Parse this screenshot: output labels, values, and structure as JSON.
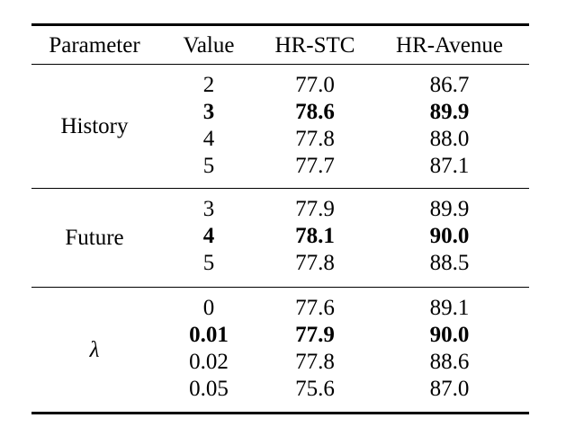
{
  "table": {
    "columns": {
      "parameter": "Parameter",
      "value": "Value",
      "hr_stc": "HR-STC",
      "hr_avenue": "HR-Avenue"
    },
    "groups": [
      {
        "label": "History",
        "rows": [
          {
            "value": "2",
            "hr_stc": "77.0",
            "hr_avenue": "86.7",
            "bold": false
          },
          {
            "value": "3",
            "hr_stc": "78.6",
            "hr_avenue": "89.9",
            "bold": true
          },
          {
            "value": "4",
            "hr_stc": "77.8",
            "hr_avenue": "88.0",
            "bold": false
          },
          {
            "value": "5",
            "hr_stc": "77.7",
            "hr_avenue": "87.1",
            "bold": false
          }
        ]
      },
      {
        "label": "Future",
        "rows": [
          {
            "value": "3",
            "hr_stc": "77.9",
            "hr_avenue": "89.9",
            "bold": false
          },
          {
            "value": "4",
            "hr_stc": "78.1",
            "hr_avenue": "90.0",
            "bold": true
          },
          {
            "value": "5",
            "hr_stc": "77.8",
            "hr_avenue": "88.5",
            "bold": false
          }
        ]
      },
      {
        "label": "λ",
        "rows": [
          {
            "value": "0",
            "hr_stc": "77.6",
            "hr_avenue": "89.1",
            "bold": false
          },
          {
            "value": "0.01",
            "hr_stc": "77.9",
            "hr_avenue": "90.0",
            "bold": true
          },
          {
            "value": "0.02",
            "hr_stc": "77.8",
            "hr_avenue": "88.6",
            "bold": false
          },
          {
            "value": "0.05",
            "hr_stc": "75.6",
            "hr_avenue": "87.0",
            "bold": false
          }
        ]
      }
    ],
    "colors": {
      "text": "#000000",
      "rule": "#000000",
      "background": "#ffffff"
    }
  }
}
